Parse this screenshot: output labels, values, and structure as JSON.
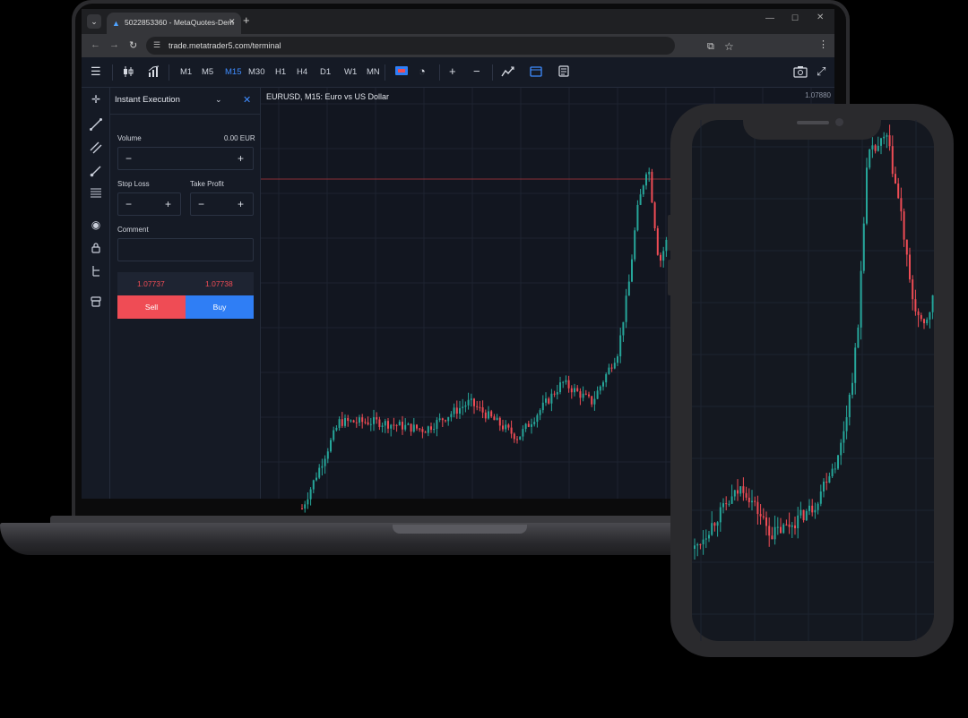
{
  "browser": {
    "tab_title": "5022853360 - MetaQuotes-Dem",
    "url": "trade.metatrader5.com/terminal",
    "icons": [
      "tab-dropdown-icon",
      "favicon-icon",
      "tab-close-icon",
      "new-tab-icon",
      "back-icon",
      "forward-icon",
      "reload-icon",
      "site-info-icon",
      "cast-icon",
      "star-icon",
      "menu-icon",
      "minimize-icon",
      "maximize-icon",
      "close-icon"
    ]
  },
  "toolbar": {
    "timeframes": [
      {
        "label": "M1",
        "active": false
      },
      {
        "label": "M5",
        "active": false
      },
      {
        "label": "M15",
        "active": true
      },
      {
        "label": "M30",
        "active": false
      },
      {
        "label": "H1",
        "active": false
      },
      {
        "label": "H4",
        "active": false
      },
      {
        "label": "D1",
        "active": false
      },
      {
        "label": "W1",
        "active": false
      },
      {
        "label": "MN",
        "active": false
      }
    ]
  },
  "order_panel": {
    "title": "Instant Execution",
    "volume_label": "Volume",
    "volume_value": "0.00 EUR",
    "stop_loss_label": "Stop Loss",
    "take_profit_label": "Take Profit",
    "comment_label": "Comment",
    "bid_price": "1.07737",
    "ask_price": "1.07738",
    "sell_label": "Sell",
    "buy_label": "Buy",
    "minus_symbol": "−",
    "plus_symbol": "+"
  },
  "chart": {
    "title": "EURUSD, M15: Euro vs US Dollar",
    "top_price_label": "1.07880"
  },
  "colors": {
    "bull": "#26a69a",
    "bear": "#ef4c55",
    "accent": "#3f8cff"
  }
}
